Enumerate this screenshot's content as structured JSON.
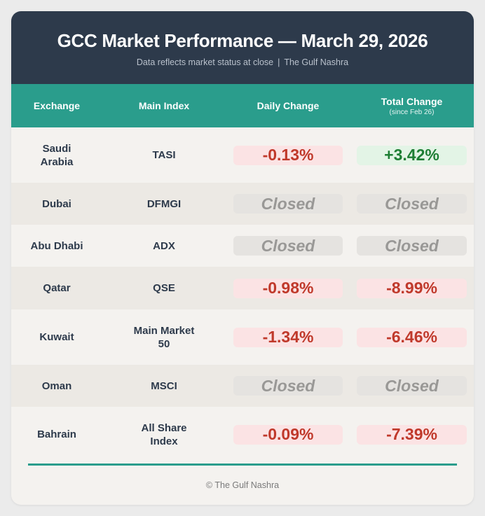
{
  "header": {
    "title": "GCC Market Performance — March 29, 2026",
    "subtitle_left": "Data reflects market status at close",
    "subtitle_sep": "|",
    "subtitle_right": "The Gulf Nashra"
  },
  "columns": {
    "exchange": "Exchange",
    "index": "Main Index",
    "daily": "Daily Change",
    "total": "Total Change",
    "total_sub": "(since Feb 26)"
  },
  "rows": [
    {
      "exchange": "Saudi Arabia",
      "index": "TASI",
      "daily": "-0.13%",
      "daily_status": "negative",
      "total": "+3.42%",
      "total_status": "positive"
    },
    {
      "exchange": "Dubai",
      "index": "DFMGI",
      "daily": "Closed",
      "daily_status": "closed",
      "total": "Closed",
      "total_status": "closed"
    },
    {
      "exchange": "Abu Dhabi",
      "index": "ADX",
      "daily": "Closed",
      "daily_status": "closed",
      "total": "Closed",
      "total_status": "closed"
    },
    {
      "exchange": "Qatar",
      "index": "QSE",
      "daily": "-0.98%",
      "daily_status": "negative",
      "total": "-8.99%",
      "total_status": "negative"
    },
    {
      "exchange": "Kuwait",
      "index": "Main Market 50",
      "daily": "-1.34%",
      "daily_status": "negative",
      "total": "-6.46%",
      "total_status": "negative"
    },
    {
      "exchange": "Oman",
      "index": "MSCI",
      "daily": "Closed",
      "daily_status": "closed",
      "total": "Closed",
      "total_status": "closed"
    },
    {
      "exchange": "Bahrain",
      "index": "All Share Index",
      "daily": "-0.09%",
      "daily_status": "negative",
      "total": "-7.39%",
      "total_status": "negative"
    }
  ],
  "footer": {
    "text": "© The Gulf Nashra"
  },
  "colors": {
    "header_bg": "#2d3a4b",
    "column_header_bg": "#2a9d8c",
    "negative": "#c0392b",
    "positive": "#1e7e34",
    "closed": "#999896"
  }
}
